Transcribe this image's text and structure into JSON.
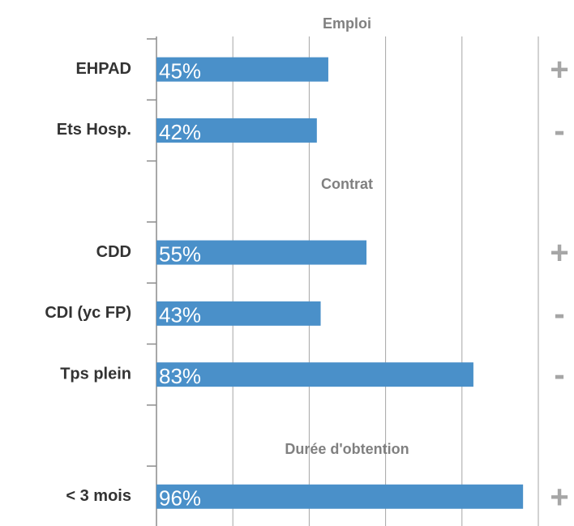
{
  "chart_data": {
    "type": "bar",
    "orientation": "horizontal",
    "categories": [
      "EHPAD",
      "Ets Hosp.",
      null,
      "CDD",
      "CDI (yc FP)",
      "Tps plein",
      null,
      "< 3 mois"
    ],
    "values": [
      45,
      42,
      null,
      55,
      43,
      83,
      null,
      96
    ],
    "value_labels": [
      "45%",
      "42%",
      null,
      "55%",
      "43%",
      "83%",
      null,
      "96%"
    ],
    "signs": [
      "+",
      "-",
      null,
      "+",
      "-",
      "-",
      null,
      "+"
    ],
    "annotations": [
      "Emploi",
      "Contrat",
      "Durée d'obtention"
    ],
    "color": "#4a90c9",
    "xlim": [
      0,
      100
    ],
    "xticks": [
      0,
      20,
      40,
      60,
      80,
      100
    ],
    "grid": true
  }
}
